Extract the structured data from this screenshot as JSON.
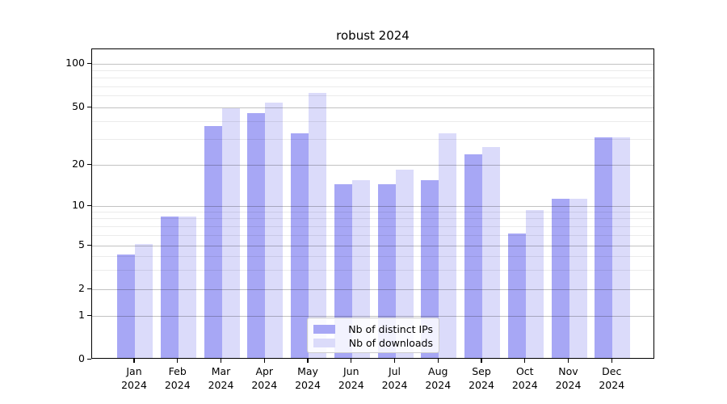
{
  "title": "robust 2024",
  "chart_data": {
    "type": "bar",
    "title": "robust 2024",
    "xlabel": "",
    "ylabel": "",
    "scale": "log-like symlog (linear 0-1, logarithmic above)",
    "categories": [
      "Jan",
      "Feb",
      "Mar",
      "Apr",
      "May",
      "Jun",
      "Jul",
      "Aug",
      "Sep",
      "Oct",
      "Nov",
      "Dec"
    ],
    "year": "2024",
    "series": [
      {
        "name": "Nb of distinct IPs",
        "color": "#a7a7f5",
        "values": [
          4,
          8,
          36,
          44,
          32,
          14,
          14,
          15,
          23,
          6,
          11,
          30
        ]
      },
      {
        "name": "Nb of downloads",
        "color": "#dbdbfa",
        "values": [
          5,
          8,
          48,
          52,
          61,
          15,
          18,
          32,
          26,
          9,
          11,
          30
        ]
      }
    ],
    "y_ticks": [
      0,
      1,
      2,
      5,
      10,
      20,
      50,
      100
    ],
    "minor_gridlines": [
      3,
      4,
      6,
      7,
      8,
      9,
      30,
      40,
      60,
      70,
      80,
      90
    ],
    "ylim": [
      0,
      127
    ],
    "grid": "on, gridlines drawn over bars",
    "legend_position": "bottom-center"
  }
}
